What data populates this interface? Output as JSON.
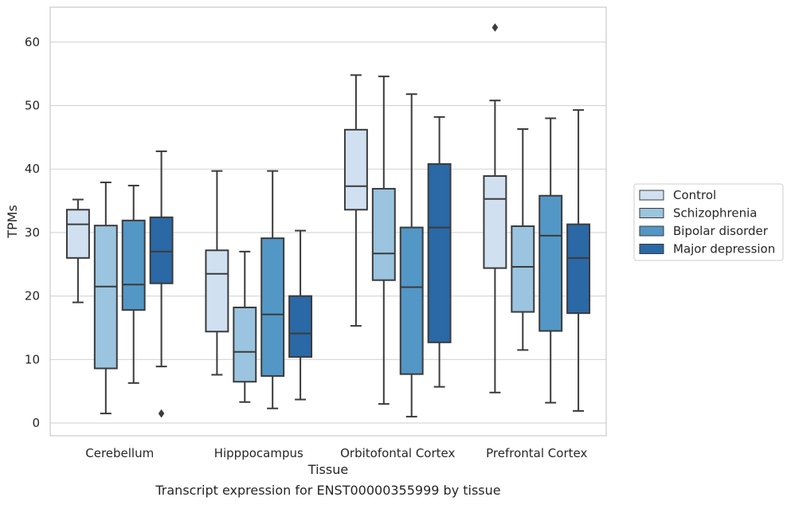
{
  "caption": "Transcript expression for ENST00000355999 by tissue",
  "chart_data": {
    "type": "box",
    "xlabel": "Tissue",
    "ylabel": "TPMs",
    "ylim": [
      -2,
      65.5
    ],
    "yticks": [
      0,
      10,
      20,
      30,
      40,
      50,
      60
    ],
    "grid": "horizontal",
    "legend_position": "right",
    "categories": [
      "Cerebellum",
      "Hipppocampus",
      "Orbitofontal Cortex",
      "Prefrontal Cortex"
    ],
    "series": [
      {
        "name": "Control",
        "color": "#d0e0f1",
        "boxes": [
          {
            "whislo": 19.0,
            "q1": 26.0,
            "med": 31.3,
            "q3": 33.6,
            "whishi": 35.2,
            "fliers": []
          },
          {
            "whislo": 7.6,
            "q1": 14.4,
            "med": 23.5,
            "q3": 27.2,
            "whishi": 39.7,
            "fliers": []
          },
          {
            "whislo": 15.3,
            "q1": 33.6,
            "med": 37.3,
            "q3": 46.2,
            "whishi": 54.8,
            "fliers": []
          },
          {
            "whislo": 4.8,
            "q1": 24.4,
            "med": 35.3,
            "q3": 38.9,
            "whishi": 50.8,
            "fliers": [
              62.3
            ]
          }
        ]
      },
      {
        "name": "Schizophrenia",
        "color": "#9ac4df",
        "boxes": [
          {
            "whislo": 1.5,
            "q1": 8.6,
            "med": 21.5,
            "q3": 31.1,
            "whishi": 37.9,
            "fliers": []
          },
          {
            "whislo": 3.3,
            "q1": 6.5,
            "med": 11.2,
            "q3": 18.2,
            "whishi": 27.0,
            "fliers": []
          },
          {
            "whislo": 3.0,
            "q1": 22.5,
            "med": 26.7,
            "q3": 36.9,
            "whishi": 54.6,
            "fliers": []
          },
          {
            "whislo": 11.5,
            "q1": 17.5,
            "med": 24.6,
            "q3": 31.0,
            "whishi": 46.3,
            "fliers": []
          }
        ]
      },
      {
        "name": "Bipolar disorder",
        "color": "#5397c6",
        "boxes": [
          {
            "whislo": 6.3,
            "q1": 17.8,
            "med": 21.8,
            "q3": 31.9,
            "whishi": 37.4,
            "fliers": []
          },
          {
            "whislo": 2.3,
            "q1": 7.4,
            "med": 17.1,
            "q3": 29.1,
            "whishi": 39.7,
            "fliers": []
          },
          {
            "whislo": 1.0,
            "q1": 7.7,
            "med": 21.4,
            "q3": 30.8,
            "whishi": 51.8,
            "fliers": []
          },
          {
            "whislo": 3.2,
            "q1": 14.5,
            "med": 29.5,
            "q3": 35.8,
            "whishi": 48.0,
            "fliers": []
          }
        ]
      },
      {
        "name": "Major depression",
        "color": "#2a68a6",
        "boxes": [
          {
            "whislo": 8.9,
            "q1": 22.0,
            "med": 27.0,
            "q3": 32.4,
            "whishi": 42.8,
            "fliers": [
              1.5
            ]
          },
          {
            "whislo": 3.7,
            "q1": 10.4,
            "med": 14.1,
            "q3": 20.0,
            "whishi": 30.3,
            "fliers": []
          },
          {
            "whislo": 5.7,
            "q1": 12.7,
            "med": 30.8,
            "q3": 40.8,
            "whishi": 48.2,
            "fliers": []
          },
          {
            "whislo": 1.9,
            "q1": 17.3,
            "med": 26.0,
            "q3": 31.3,
            "whishi": 49.3,
            "fliers": []
          }
        ]
      }
    ]
  }
}
